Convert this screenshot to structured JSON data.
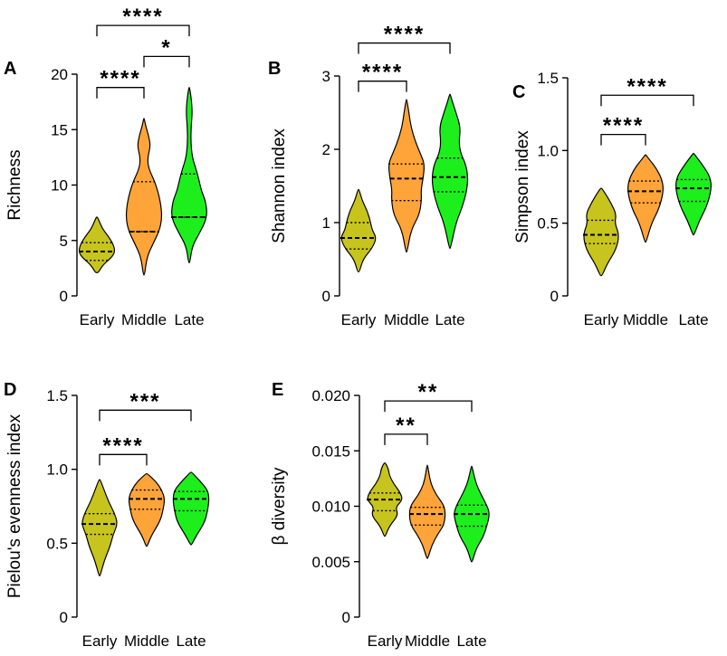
{
  "colors": {
    "early": "#C7C41D",
    "middle": "#FFA439",
    "late": "#1DEF1D",
    "axis": "#000000"
  },
  "chart_data": [
    {
      "panel": "A",
      "type": "violin",
      "ylabel": "Richness",
      "ylim": [
        0,
        20
      ],
      "yticks": [
        "0",
        "5",
        "10",
        "15",
        "20"
      ],
      "yticks_values": [
        0,
        5,
        10,
        15,
        20
      ],
      "categories": [
        "Early",
        "Middle",
        "Late"
      ],
      "violins": [
        {
          "name": "Early",
          "min": 2.1,
          "max": 7.1,
          "median": 4.0,
          "q1": 3.2,
          "q3": 4.8,
          "profile": [
            [
              2.1,
              0.05
            ],
            [
              2.8,
              0.2
            ],
            [
              3.5,
              0.5
            ],
            [
              4.0,
              0.6
            ],
            [
              4.6,
              0.55
            ],
            [
              5.3,
              0.4
            ],
            [
              6.0,
              0.2
            ],
            [
              6.6,
              0.1
            ],
            [
              7.1,
              0.02
            ]
          ]
        },
        {
          "name": "Middle",
          "min": 1.9,
          "max": 16.0,
          "median": 5.8,
          "q1": 5.8,
          "q3": 10.3,
          "profile": [
            [
              1.9,
              0.02
            ],
            [
              3.5,
              0.1
            ],
            [
              4.7,
              0.3
            ],
            [
              5.8,
              0.5
            ],
            [
              7.0,
              0.6
            ],
            [
              8.5,
              0.55
            ],
            [
              10.2,
              0.38
            ],
            [
              11.5,
              0.15
            ],
            [
              12.5,
              0.12
            ],
            [
              13.5,
              0.22
            ],
            [
              14.5,
              0.15
            ],
            [
              15.3,
              0.06
            ],
            [
              16.0,
              0.01
            ]
          ]
        },
        {
          "name": "Late",
          "min": 3.0,
          "max": 18.8,
          "median": 7.1,
          "q1": 7.1,
          "q3": 11.0,
          "profile": [
            [
              3.0,
              0.02
            ],
            [
              4.5,
              0.1
            ],
            [
              5.7,
              0.35
            ],
            [
              7.1,
              0.6
            ],
            [
              8.5,
              0.55
            ],
            [
              9.5,
              0.4
            ],
            [
              10.5,
              0.32
            ],
            [
              11.5,
              0.22
            ],
            [
              12.5,
              0.1
            ],
            [
              14.0,
              0.05
            ],
            [
              15.5,
              0.07
            ],
            [
              16.5,
              0.1
            ],
            [
              17.5,
              0.08
            ],
            [
              18.3,
              0.04
            ],
            [
              18.8,
              0.01
            ]
          ]
        }
      ],
      "significance": [
        {
          "label": "****",
          "from": "Early",
          "to": "Middle",
          "y": 18.8
        },
        {
          "label": "*",
          "from": "Middle",
          "to": "Late",
          "y": 21.6
        },
        {
          "label": "****",
          "from": "Early",
          "to": "Late",
          "y": 24.4
        }
      ]
    },
    {
      "panel": "B",
      "type": "violin",
      "ylabel": "Shannon index",
      "ylim": [
        0,
        3
      ],
      "yticks": [
        "0",
        "1",
        "2",
        "3"
      ],
      "yticks_values": [
        0,
        1,
        2,
        3
      ],
      "categories": [
        "Early",
        "Middle",
        "Late"
      ],
      "violins": [
        {
          "name": "Early",
          "min": 0.33,
          "max": 1.45,
          "median": 0.79,
          "q1": 0.64,
          "q3": 1.0,
          "profile": [
            [
              0.33,
              0.03
            ],
            [
              0.5,
              0.15
            ],
            [
              0.65,
              0.45
            ],
            [
              0.79,
              0.6
            ],
            [
              0.9,
              0.45
            ],
            [
              1.0,
              0.4
            ],
            [
              1.15,
              0.3
            ],
            [
              1.3,
              0.12
            ],
            [
              1.45,
              0.02
            ]
          ]
        },
        {
          "name": "Middle",
          "min": 0.6,
          "max": 2.68,
          "median": 1.6,
          "q1": 1.3,
          "q3": 1.8,
          "profile": [
            [
              0.6,
              0.02
            ],
            [
              0.9,
              0.15
            ],
            [
              1.1,
              0.42
            ],
            [
              1.3,
              0.5
            ],
            [
              1.45,
              0.48
            ],
            [
              1.6,
              0.55
            ],
            [
              1.8,
              0.6
            ],
            [
              1.95,
              0.45
            ],
            [
              2.1,
              0.3
            ],
            [
              2.3,
              0.15
            ],
            [
              2.5,
              0.08
            ],
            [
              2.68,
              0.01
            ]
          ]
        },
        {
          "name": "Late",
          "min": 0.65,
          "max": 2.75,
          "median": 1.62,
          "q1": 1.42,
          "q3": 1.88,
          "profile": [
            [
              0.65,
              0.02
            ],
            [
              1.0,
              0.2
            ],
            [
              1.2,
              0.4
            ],
            [
              1.42,
              0.55
            ],
            [
              1.62,
              0.6
            ],
            [
              1.8,
              0.52
            ],
            [
              1.95,
              0.35
            ],
            [
              2.1,
              0.3
            ],
            [
              2.3,
              0.35
            ],
            [
              2.5,
              0.2
            ],
            [
              2.65,
              0.08
            ],
            [
              2.75,
              0.01
            ]
          ]
        }
      ],
      "significance": [
        {
          "label": "****",
          "from": "Early",
          "to": "Middle",
          "y": 2.93
        },
        {
          "label": "****",
          "from": "Early",
          "to": "Late",
          "y": 3.45
        }
      ]
    },
    {
      "panel": "C",
      "type": "violin",
      "ylabel": "Simpson index",
      "ylim": [
        0,
        1.5
      ],
      "yticks": [
        "0",
        "0.5",
        "1.0",
        "1.5"
      ],
      "yticks_values": [
        0,
        0.5,
        1.0,
        1.5
      ],
      "categories": [
        "Early",
        "Middle",
        "Late"
      ],
      "violins": [
        {
          "name": "Early",
          "min": 0.14,
          "max": 0.74,
          "median": 0.42,
          "q1": 0.36,
          "q3": 0.52,
          "profile": [
            [
              0.14,
              0.03
            ],
            [
              0.22,
              0.2
            ],
            [
              0.32,
              0.5
            ],
            [
              0.42,
              0.6
            ],
            [
              0.5,
              0.45
            ],
            [
              0.56,
              0.5
            ],
            [
              0.63,
              0.35
            ],
            [
              0.7,
              0.15
            ],
            [
              0.74,
              0.02
            ]
          ]
        },
        {
          "name": "Middle",
          "min": 0.37,
          "max": 0.97,
          "median": 0.72,
          "q1": 0.64,
          "q3": 0.79,
          "profile": [
            [
              0.37,
              0.02
            ],
            [
              0.5,
              0.2
            ],
            [
              0.6,
              0.45
            ],
            [
              0.72,
              0.6
            ],
            [
              0.8,
              0.55
            ],
            [
              0.88,
              0.35
            ],
            [
              0.94,
              0.12
            ],
            [
              0.97,
              0.01
            ]
          ]
        },
        {
          "name": "Late",
          "min": 0.42,
          "max": 0.98,
          "median": 0.74,
          "q1": 0.65,
          "q3": 0.8,
          "profile": [
            [
              0.42,
              0.02
            ],
            [
              0.52,
              0.2
            ],
            [
              0.62,
              0.45
            ],
            [
              0.74,
              0.6
            ],
            [
              0.82,
              0.55
            ],
            [
              0.9,
              0.3
            ],
            [
              0.95,
              0.12
            ],
            [
              0.98,
              0.01
            ]
          ]
        }
      ],
      "significance": [
        {
          "label": "****",
          "from": "Early",
          "to": "Middle",
          "y": 1.11
        },
        {
          "label": "****",
          "from": "Early",
          "to": "Late",
          "y": 1.38
        }
      ]
    },
    {
      "panel": "D",
      "type": "violin",
      "ylabel": "Pielou's evenness index",
      "ylim": [
        0,
        1.5
      ],
      "yticks": [
        "0",
        "0.5",
        "1.0",
        "1.5"
      ],
      "yticks_values": [
        0,
        0.5,
        1.0,
        1.5
      ],
      "categories": [
        "Early",
        "Middle",
        "Late"
      ],
      "violins": [
        {
          "name": "Early",
          "min": 0.28,
          "max": 0.93,
          "median": 0.63,
          "q1": 0.56,
          "q3": 0.7,
          "profile": [
            [
              0.28,
              0.02
            ],
            [
              0.38,
              0.15
            ],
            [
              0.48,
              0.35
            ],
            [
              0.56,
              0.45
            ],
            [
              0.63,
              0.6
            ],
            [
              0.7,
              0.5
            ],
            [
              0.78,
              0.3
            ],
            [
              0.86,
              0.15
            ],
            [
              0.93,
              0.02
            ]
          ]
        },
        {
          "name": "Middle",
          "min": 0.48,
          "max": 0.97,
          "median": 0.8,
          "q1": 0.73,
          "q3": 0.86,
          "profile": [
            [
              0.48,
              0.02
            ],
            [
              0.55,
              0.15
            ],
            [
              0.65,
              0.45
            ],
            [
              0.73,
              0.55
            ],
            [
              0.8,
              0.6
            ],
            [
              0.86,
              0.5
            ],
            [
              0.92,
              0.3
            ],
            [
              0.97,
              0.02
            ]
          ]
        },
        {
          "name": "Late",
          "min": 0.49,
          "max": 0.98,
          "median": 0.8,
          "q1": 0.72,
          "q3": 0.85,
          "profile": [
            [
              0.49,
              0.02
            ],
            [
              0.56,
              0.2
            ],
            [
              0.64,
              0.45
            ],
            [
              0.72,
              0.55
            ],
            [
              0.8,
              0.6
            ],
            [
              0.86,
              0.55
            ],
            [
              0.92,
              0.3
            ],
            [
              0.98,
              0.02
            ]
          ]
        }
      ],
      "significance": [
        {
          "label": "****",
          "from": "Early",
          "to": "Middle",
          "y": 1.1
        },
        {
          "label": "***",
          "from": "Early",
          "to": "Late",
          "y": 1.4
        }
      ]
    },
    {
      "panel": "E",
      "type": "violin",
      "ylabel": "β diversity",
      "ylim": [
        0,
        0.02
      ],
      "yticks": [
        "0",
        "0.005",
        "0.010",
        "0.015",
        "0.020"
      ],
      "yticks_values": [
        0,
        0.005,
        0.01,
        0.015,
        0.02
      ],
      "categories": [
        "Early",
        "Middle",
        "Late"
      ],
      "violins": [
        {
          "name": "Early",
          "min": 0.0073,
          "max": 0.0139,
          "median": 0.0106,
          "q1": 0.0096,
          "q3": 0.0112,
          "profile": [
            [
              0.0073,
              0.02
            ],
            [
              0.0082,
              0.15
            ],
            [
              0.0092,
              0.45
            ],
            [
              0.0099,
              0.35
            ],
            [
              0.0106,
              0.6
            ],
            [
              0.0113,
              0.5
            ],
            [
              0.012,
              0.3
            ],
            [
              0.0128,
              0.15
            ],
            [
              0.0134,
              0.12
            ],
            [
              0.0139,
              0.02
            ]
          ]
        },
        {
          "name": "Middle",
          "min": 0.0053,
          "max": 0.0137,
          "median": 0.0093,
          "q1": 0.0083,
          "q3": 0.0099,
          "profile": [
            [
              0.0053,
              0.02
            ],
            [
              0.0065,
              0.15
            ],
            [
              0.0075,
              0.35
            ],
            [
              0.0083,
              0.55
            ],
            [
              0.0093,
              0.6
            ],
            [
              0.0101,
              0.55
            ],
            [
              0.011,
              0.3
            ],
            [
              0.012,
              0.12
            ],
            [
              0.013,
              0.05
            ],
            [
              0.0137,
              0.01
            ]
          ]
        },
        {
          "name": "Late",
          "min": 0.005,
          "max": 0.0136,
          "median": 0.0093,
          "q1": 0.0082,
          "q3": 0.0101,
          "profile": [
            [
              0.005,
              0.02
            ],
            [
              0.0062,
              0.15
            ],
            [
              0.0072,
              0.38
            ],
            [
              0.0082,
              0.5
            ],
            [
              0.0093,
              0.6
            ],
            [
              0.0101,
              0.5
            ],
            [
              0.011,
              0.32
            ],
            [
              0.012,
              0.15
            ],
            [
              0.013,
              0.06
            ],
            [
              0.0136,
              0.01
            ]
          ]
        }
      ],
      "significance": [
        {
          "label": "**",
          "from": "Early",
          "to": "Middle",
          "y": 0.0165
        },
        {
          "label": "**",
          "from": "Early",
          "to": "Late",
          "y": 0.0195
        }
      ]
    }
  ]
}
